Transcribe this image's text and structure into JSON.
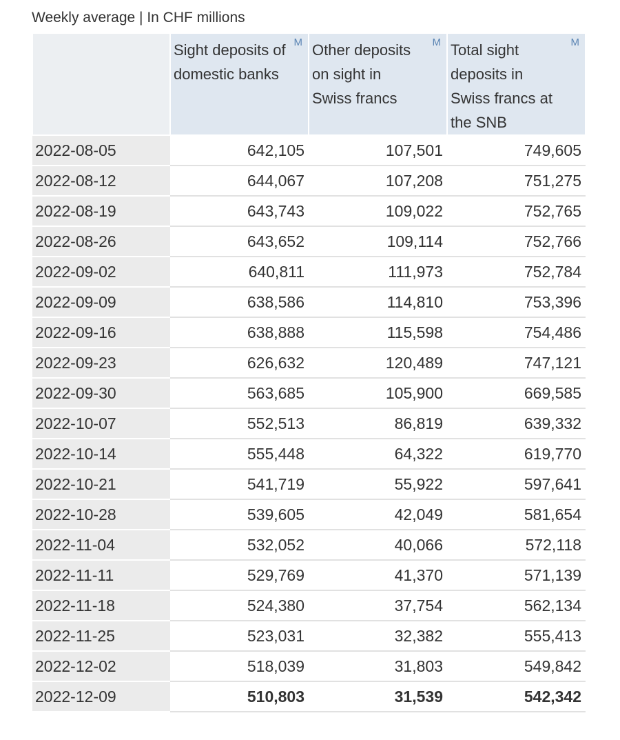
{
  "caption": "Weekly average | In CHF millions",
  "columns": [
    {
      "label": "Sight deposits of domestic banks",
      "marker": "M"
    },
    {
      "label": "Other deposits on sight in Swiss francs",
      "marker": "M"
    },
    {
      "label": "Total sight deposits in Swiss francs at the SNB",
      "marker": "M"
    }
  ],
  "rows": [
    {
      "date": "2022-08-05",
      "values": [
        "642,105",
        "107,501",
        "749,605"
      ]
    },
    {
      "date": "2022-08-12",
      "values": [
        "644,067",
        "107,208",
        "751,275"
      ]
    },
    {
      "date": "2022-08-19",
      "values": [
        "643,743",
        "109,022",
        "752,765"
      ]
    },
    {
      "date": "2022-08-26",
      "values": [
        "643,652",
        "109,114",
        "752,766"
      ]
    },
    {
      "date": "2022-09-02",
      "values": [
        "640,811",
        "111,973",
        "752,784"
      ]
    },
    {
      "date": "2022-09-09",
      "values": [
        "638,586",
        "114,810",
        "753,396"
      ]
    },
    {
      "date": "2022-09-16",
      "values": [
        "638,888",
        "115,598",
        "754,486"
      ]
    },
    {
      "date": "2022-09-23",
      "values": [
        "626,632",
        "120,489",
        "747,121"
      ]
    },
    {
      "date": "2022-09-30",
      "values": [
        "563,685",
        "105,900",
        "669,585"
      ]
    },
    {
      "date": "2022-10-07",
      "values": [
        "552,513",
        "86,819",
        "639,332"
      ]
    },
    {
      "date": "2022-10-14",
      "values": [
        "555,448",
        "64,322",
        "619,770"
      ]
    },
    {
      "date": "2022-10-21",
      "values": [
        "541,719",
        "55,922",
        "597,641"
      ]
    },
    {
      "date": "2022-10-28",
      "values": [
        "539,605",
        "42,049",
        "581,654"
      ]
    },
    {
      "date": "2022-11-04",
      "values": [
        "532,052",
        "40,066",
        "572,118"
      ]
    },
    {
      "date": "2022-11-11",
      "values": [
        "529,769",
        "41,370",
        "571,139"
      ]
    },
    {
      "date": "2022-11-18",
      "values": [
        "524,380",
        "37,754",
        "562,134"
      ]
    },
    {
      "date": "2022-11-25",
      "values": [
        "523,031",
        "32,382",
        "555,413"
      ]
    },
    {
      "date": "2022-12-02",
      "values": [
        "518,039",
        "31,803",
        "549,842"
      ]
    },
    {
      "date": "2022-12-09",
      "values": [
        "510,803",
        "31,539",
        "542,342"
      ]
    }
  ]
}
